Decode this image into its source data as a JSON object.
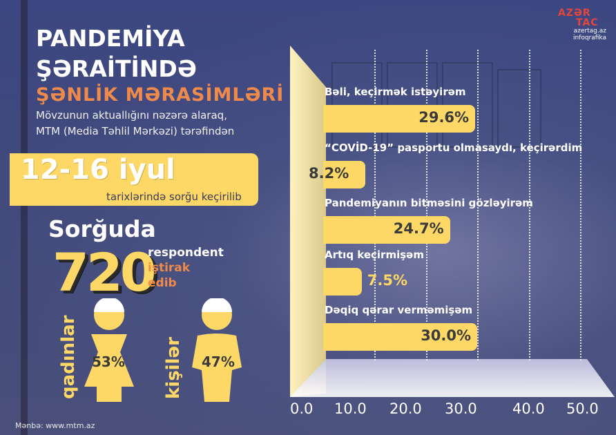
{
  "logo": {
    "line1": "AZƏR",
    "line2": "TAC",
    "site": "azertag.az",
    "tag": "infoqrafika"
  },
  "title": {
    "line1": "PANDEMİYA",
    "line2": "ŞƏRAİTİNDƏ",
    "line3": "ŞƏNLİK MƏRASİMLƏRİ"
  },
  "intro": {
    "line1": "Mövzunun aktuallığını nəzərə alaraq,",
    "line2": "MTM (Media Təhlil Mərkəzi) tərəfindən"
  },
  "survey": {
    "date": "12-16 iyul",
    "date_caption": "tarixlərində sorğu keçirilib",
    "heading": "Sorğuda",
    "respondents": "720",
    "resp_word": "respondent",
    "resp_word2": "iştirak",
    "resp_word3": "edib"
  },
  "gender": {
    "women_label": "qadınlar",
    "women_pct": "53%",
    "men_label": "kişilər",
    "men_pct": "47%"
  },
  "colors": {
    "bar": "#fdd866",
    "accent": "#f08a4b",
    "background": "#3d4781"
  },
  "chart_data": {
    "type": "bar",
    "orientation": "horizontal",
    "categories": [
      "Bəli, keçirmək istəyirəm",
      "“COVİD-19” pasportu olmasaydı, keçirərdim",
      "Pandemiyanın bitməsini gözləyirəm",
      "Artıq keçirmişəm",
      "Dəqiq qərar verməmişəm"
    ],
    "values": [
      29.6,
      8.2,
      24.7,
      7.5,
      30.0
    ],
    "value_labels": [
      "29.6%",
      "8.2%",
      "24.7%",
      "7.5%",
      "30.0%"
    ],
    "xlim": [
      0,
      50
    ],
    "xticks": [
      "0.0",
      "10.0",
      "20.0",
      "30.0",
      "40.0",
      "50.0"
    ],
    "grid": true
  },
  "source": "Mənbə: www.mtm.az"
}
